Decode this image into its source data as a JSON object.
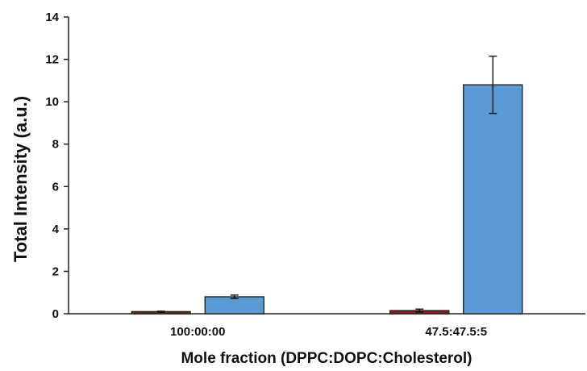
{
  "chart_data": {
    "type": "bar",
    "categories": [
      "100:00:00",
      "47.5:47.5:5"
    ],
    "series": [
      {
        "values": [
          0.1,
          0.15
        ],
        "errors": [
          0.02,
          0.07
        ],
        "color": "#8B1A1A"
      },
      {
        "values": [
          0.8,
          10.8
        ],
        "errors": [
          0.08,
          1.35
        ],
        "color": "#5B9BD5"
      }
    ],
    "xlabel": "Mole fraction (DPPC:DOPC:Cholesterol)",
    "ylabel": "Total Intensity (a.u.)",
    "ylim": [
      0,
      14
    ],
    "yticks": [
      0,
      2,
      4,
      6,
      8,
      10,
      12,
      14
    ],
    "grid": false,
    "legend": "none"
  }
}
